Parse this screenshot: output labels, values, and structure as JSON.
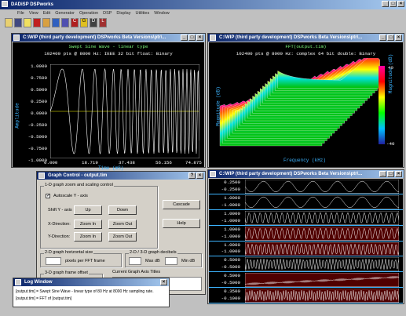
{
  "app": {
    "title": "DADiSP DSPworks"
  },
  "menu": [
    "File",
    "View",
    "Edit",
    "Generator",
    "Operation",
    "DSP",
    "Display",
    "Utilities",
    "Window"
  ],
  "toolbar": [
    "open",
    "save",
    "cut",
    "copy",
    "paste",
    "print",
    "help",
    "tool-c",
    "tool-g",
    "tool-d",
    "tool-l"
  ],
  "win_left": {
    "title": "C:\\WIP (third party development) DSPworks Beta Versions\\ptr\\...",
    "plot_title": "Swept Sine Wave - linear type",
    "plot_sub": "102400 pts @ 8000 Hz: IEEE 32 bit float: Binary",
    "ylabel": "Amplitude",
    "xlabel": "Time (mS)",
    "yticks": [
      "1.0000",
      "0.7500",
      "0.5000",
      "0.2500",
      "0.0000",
      "-0.2500",
      "-0.5000",
      "-0.7500",
      "-1.0000"
    ],
    "xticks": [
      "0.000",
      "18.719",
      "37.438",
      "56.156",
      "74.875"
    ]
  },
  "win_right": {
    "title": "C:\\WIP (third party development) DSPworks Beta Versions\\ptr\\...",
    "plot_title": "FFT(output.tim)",
    "plot_sub": "102400 pts @ 8000 Hz: complex 64 bit double: Binary",
    "ylabel": "Magnitude (dB)",
    "xlabel": "Frequency (kHz)",
    "cb_label": "Magnitude (dB)",
    "cb_ticks": [
      "40",
      "-40"
    ]
  },
  "win_bottom": {
    "title": "C:\\WIP (third party development) DSPworks Beta Versions\\ptr\\...",
    "rows": [
      [
        "0.2500",
        "-0.2500"
      ],
      [
        "1.0000",
        "-1.0000"
      ],
      [
        "1.0000",
        "-1.0000"
      ],
      [
        "1.0000",
        "-1.0000"
      ],
      [
        "1.0000",
        "-1.0000"
      ],
      [
        "0.5000",
        "-0.5000"
      ],
      [
        "0.5000",
        "-0.5000"
      ],
      [
        "0.3500",
        "-0.1000"
      ]
    ]
  },
  "dialog": {
    "title": "Graph Control - output.tim",
    "group1": "1-D graph zoom and scaling control",
    "auto_y": "Autoscale Y - axis",
    "shift_y": "Shift Y - axis",
    "x_dir": "X-Direction:",
    "y_dir": "Y-Direction:",
    "up": "Up",
    "down": "Down",
    "zoom_in": "Zoom In",
    "zoom_out": "Zoom Out",
    "cascade": "Cascade",
    "help": "Help",
    "group2": "2-D graph horizontal size",
    "pixels": "pixels per FFT frame",
    "group3": "2-D / 3-D graph decibels",
    "max_db": "Max dB",
    "min_db": "Min dB",
    "group4": "3-D graph frame offset",
    "axis_titles": "Current Graph Axis Titles"
  },
  "log": {
    "title": "Log Window",
    "lines": [
      "[output.tim] = Swept Sine Wave - linear type of 80 Hz at 8000 Hz sampling rate.",
      "[output.tim] = FFT of [output.tim]"
    ]
  },
  "colors": {
    "title_active": "#0a246a",
    "plot_bg": "#000000",
    "trace": "#ffffff",
    "axis": "#3cb4ff",
    "grid": "#ffff00"
  }
}
